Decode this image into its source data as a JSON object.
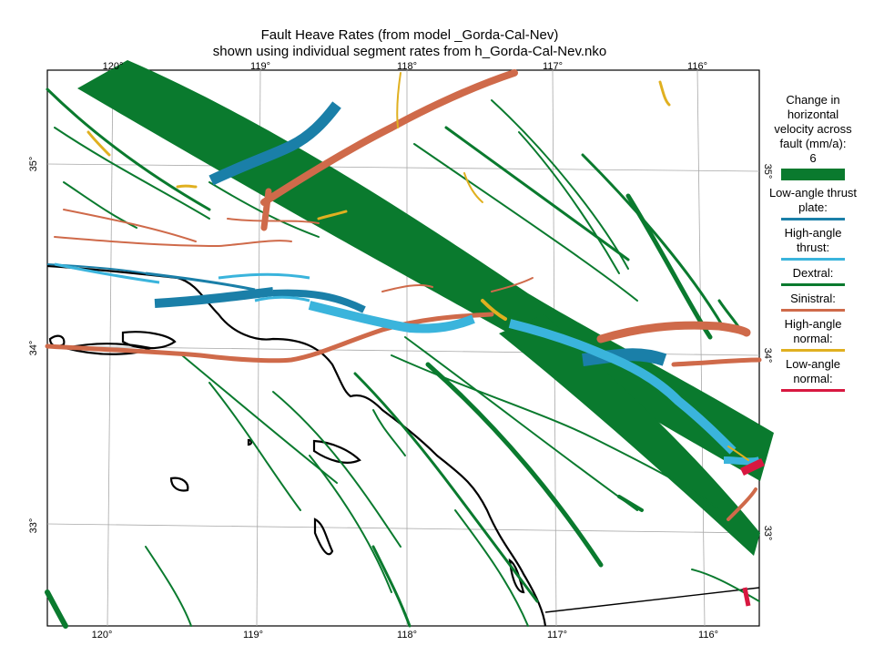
{
  "title": {
    "line1": "Fault Heave Rates (from model _Gorda-Cal-Nev)",
    "line2": "shown using individual segment rates from h_Gorda-Cal-Nev.nko"
  },
  "ticks": {
    "top": [
      "120°",
      "119°",
      "118°",
      "117°",
      "116°"
    ],
    "bottom": [
      "120°",
      "119°",
      "118°",
      "117°",
      "116°"
    ],
    "left": [
      "35°",
      "34°",
      "33°"
    ],
    "right": [
      "35°",
      "34°",
      "33°"
    ]
  },
  "legend": {
    "heading": "Change in horizontal velocity across fault (mm/a):",
    "scale_value": "6",
    "items": [
      {
        "label": "Low-angle thrust plate:",
        "color": "#1a7fa8"
      },
      {
        "label": "High-angle thrust:",
        "color": "#3ab4dc"
      },
      {
        "label": "Dextral:",
        "color": "#0a7a2e"
      },
      {
        "label": "Sinistral:",
        "color": "#cf6a4a"
      },
      {
        "label": "High-angle normal:",
        "color": "#e0b020"
      },
      {
        "label": "Low-angle normal:",
        "color": "#d81840"
      }
    ],
    "scale_color": "#0a7a2e"
  }
}
